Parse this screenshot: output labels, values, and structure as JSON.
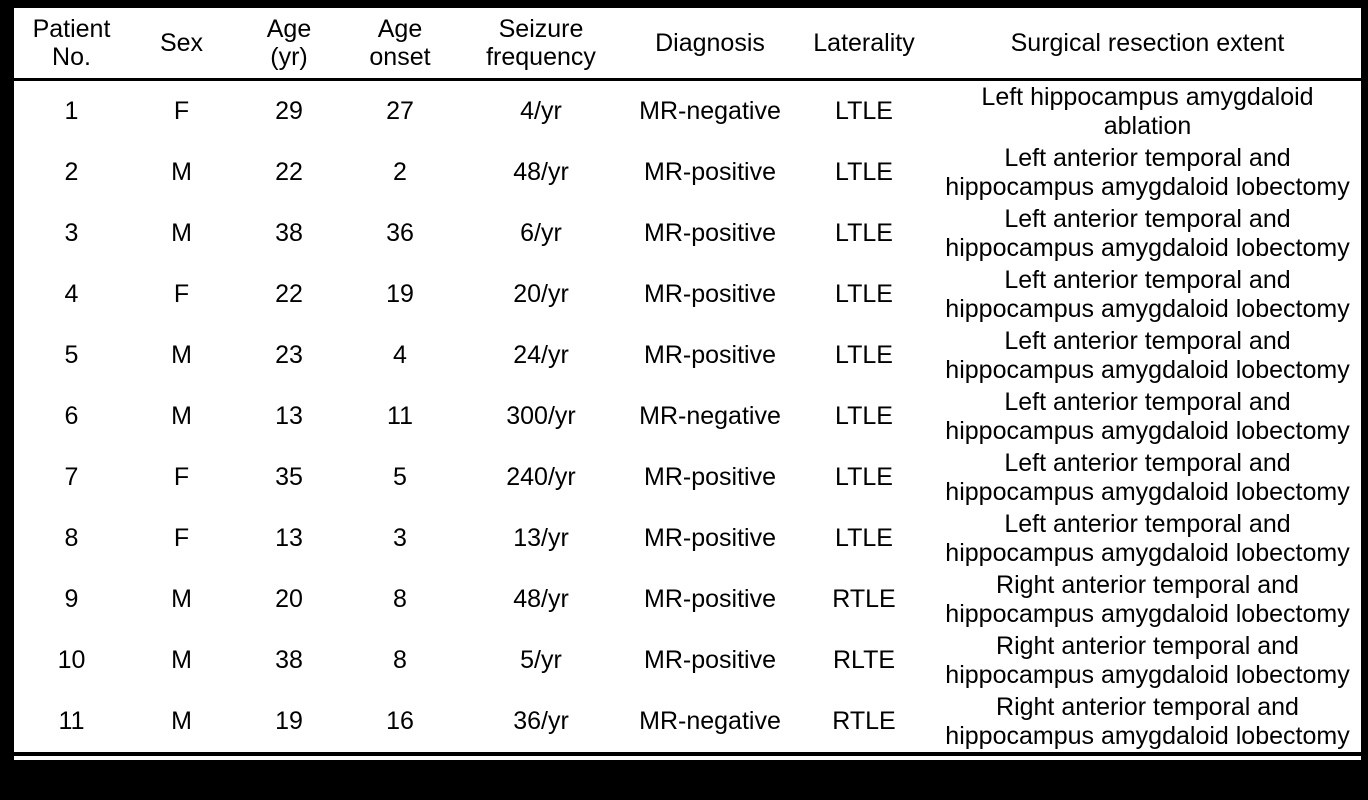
{
  "page": {
    "background_color": "#000000",
    "table_background_color": "#ffffff",
    "text_color": "#000000"
  },
  "table": {
    "columns": [
      {
        "id": "no",
        "label": "Patient\nNo."
      },
      {
        "id": "sex",
        "label": "Sex"
      },
      {
        "id": "age",
        "label": "Age\n(yr)"
      },
      {
        "id": "onset",
        "label": "Age\nonset"
      },
      {
        "id": "freq",
        "label": "Seizure\nfrequency"
      },
      {
        "id": "diagnosis",
        "label": "Diagnosis"
      },
      {
        "id": "laterality",
        "label": "Laterality"
      },
      {
        "id": "resection",
        "label": "Surgical resection extent"
      }
    ],
    "rows": [
      {
        "no": "1",
        "sex": "F",
        "age": "29",
        "onset": "27",
        "freq": "4/yr",
        "diagnosis": "MR-negative",
        "laterality": "LTLE",
        "resection": "Left hippocampus amygdaloid\nablation"
      },
      {
        "no": "2",
        "sex": "M",
        "age": "22",
        "onset": "2",
        "freq": "48/yr",
        "diagnosis": "MR-positive",
        "laterality": "LTLE",
        "resection": "Left anterior temporal and\nhippocampus amygdaloid lobectomy"
      },
      {
        "no": "3",
        "sex": "M",
        "age": "38",
        "onset": "36",
        "freq": "6/yr",
        "diagnosis": "MR-positive",
        "laterality": "LTLE",
        "resection": "Left anterior temporal and\nhippocampus amygdaloid lobectomy"
      },
      {
        "no": "4",
        "sex": "F",
        "age": "22",
        "onset": "19",
        "freq": "20/yr",
        "diagnosis": "MR-positive",
        "laterality": "LTLE",
        "resection": "Left anterior temporal and\nhippocampus amygdaloid lobectomy"
      },
      {
        "no": "5",
        "sex": "M",
        "age": "23",
        "onset": "4",
        "freq": "24/yr",
        "diagnosis": "MR-positive",
        "laterality": "LTLE",
        "resection": "Left anterior temporal and\nhippocampus amygdaloid lobectomy"
      },
      {
        "no": "6",
        "sex": "M",
        "age": "13",
        "onset": "11",
        "freq": "300/yr",
        "diagnosis": "MR-negative",
        "laterality": "LTLE",
        "resection": "Left anterior temporal and\nhippocampus amygdaloid lobectomy"
      },
      {
        "no": "7",
        "sex": "F",
        "age": "35",
        "onset": "5",
        "freq": "240/yr",
        "diagnosis": "MR-positive",
        "laterality": "LTLE",
        "resection": "Left anterior temporal and\nhippocampus amygdaloid lobectomy"
      },
      {
        "no": "8",
        "sex": "F",
        "age": "13",
        "onset": "3",
        "freq": "13/yr",
        "diagnosis": "MR-positive",
        "laterality": "LTLE",
        "resection": "Left anterior temporal and\nhippocampus amygdaloid lobectomy"
      },
      {
        "no": "9",
        "sex": "M",
        "age": "20",
        "onset": "8",
        "freq": "48/yr",
        "diagnosis": "MR-positive",
        "laterality": "RTLE",
        "resection": "Right anterior temporal and\nhippocampus amygdaloid lobectomy"
      },
      {
        "no": "10",
        "sex": "M",
        "age": "38",
        "onset": "8",
        "freq": "5/yr",
        "diagnosis": "MR-positive",
        "laterality": "RLTE",
        "resection": "Right anterior temporal and\nhippocampus amygdaloid lobectomy"
      },
      {
        "no": "11",
        "sex": "M",
        "age": "19",
        "onset": "16",
        "freq": "36/yr",
        "diagnosis": "MR-negative",
        "laterality": "RTLE",
        "resection": "Right anterior temporal and\nhippocampus amygdaloid lobectomy"
      }
    ]
  }
}
